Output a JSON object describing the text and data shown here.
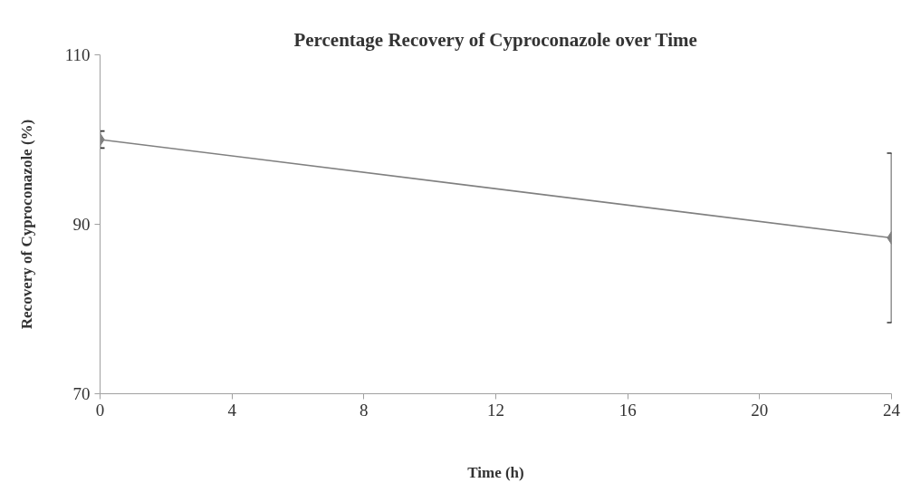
{
  "chart_data": {
    "type": "line",
    "title": "Percentage Recovery of Cyproconazole over Time",
    "xlabel": "Time (h)",
    "ylabel": "Recovery of Cyproconazole (%)",
    "x": [
      0,
      24
    ],
    "series": [
      {
        "color": "#808080",
        "values": [
          100.0,
          88.4
        ],
        "errors": [
          1.0,
          10.0
        ]
      }
    ],
    "xlim": [
      0,
      24
    ],
    "xticks": [
      0,
      4,
      8,
      12,
      16,
      20,
      24
    ],
    "ylim": [
      70,
      110
    ],
    "yticks": [
      70,
      90,
      110
    ],
    "grid": false,
    "marker": "diamond",
    "line_style": "solid"
  }
}
